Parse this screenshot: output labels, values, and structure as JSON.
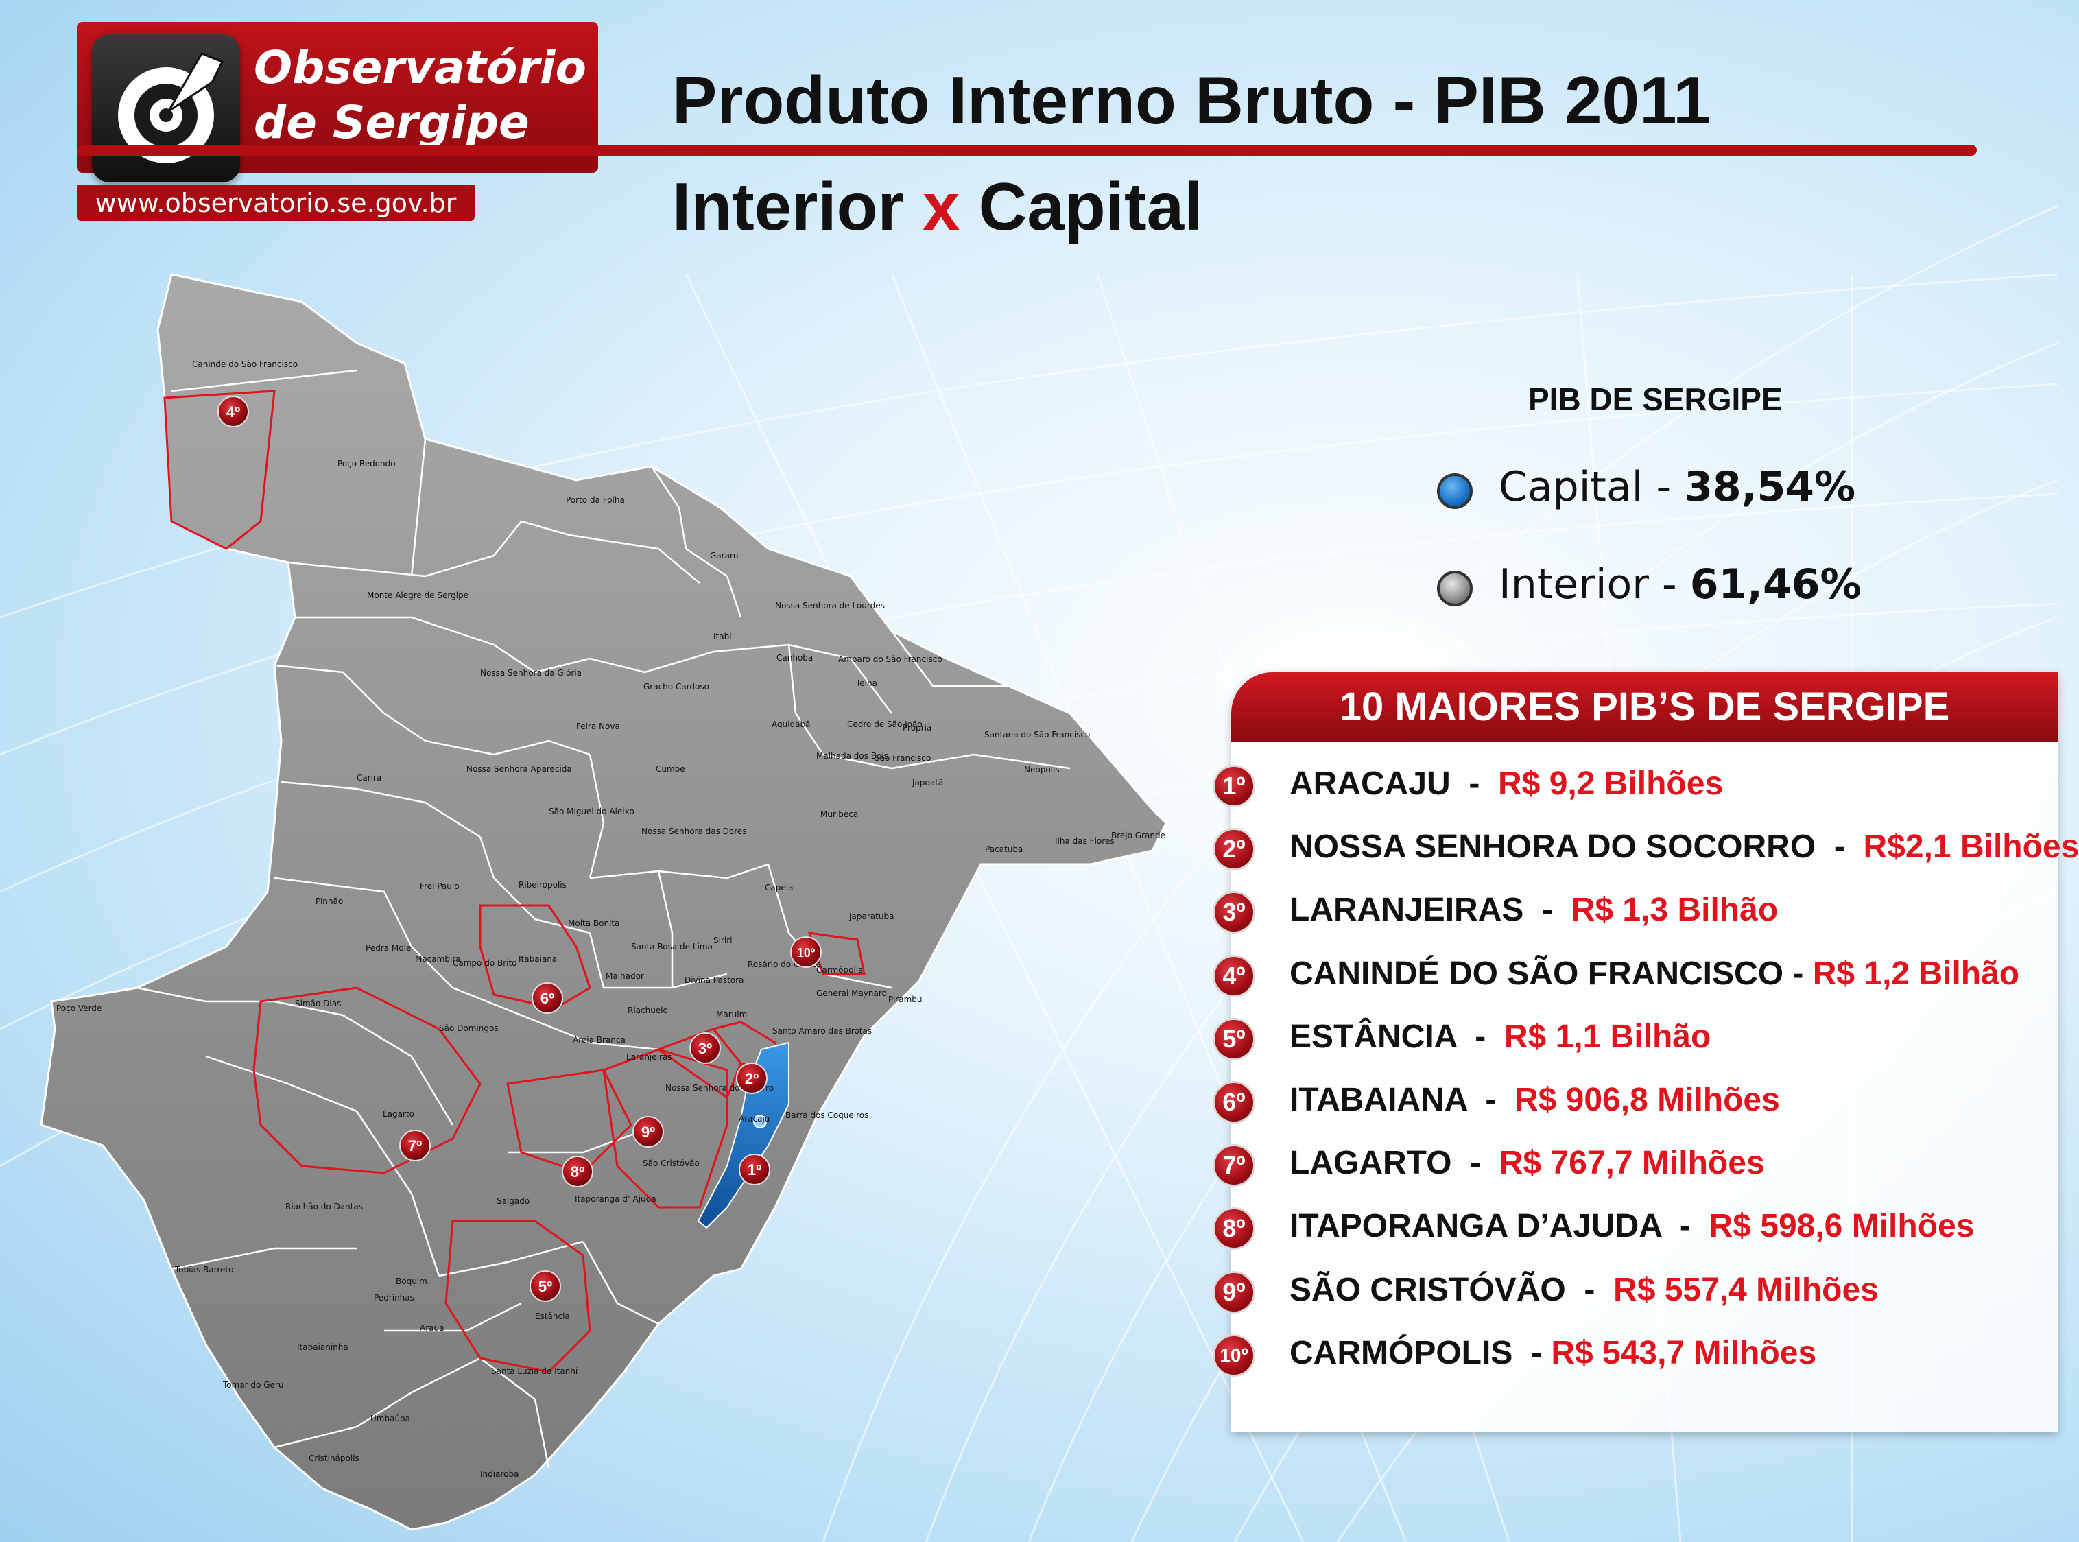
{
  "header": {
    "logo_line1": "Observatório",
    "logo_line2": "de Sergipe",
    "url": "www.observatorio.se.gov.br",
    "title_line1": "Produto Interno Bruto - PIB 2011",
    "title_line2_a": "Interior",
    "title_line2_x": "x",
    "title_line2_b": "Capital"
  },
  "pib_share": {
    "heading": "PIB DE SERGIPE",
    "items": [
      {
        "label": "Capital",
        "sep": " - ",
        "value": "38,54%",
        "color": "#1a73c9"
      },
      {
        "label": "Interior",
        "sep": " - ",
        "value": "61,46%",
        "color": "#8c8c8c"
      }
    ]
  },
  "ranking": {
    "title": "10 MAIORES PIB’S DE SERGIPE",
    "rows": [
      {
        "rank": "1º",
        "city": "ARACAJU",
        "sep": "  -  ",
        "value": "R$ 9,2 Bilhões"
      },
      {
        "rank": "2º",
        "city": "NOSSA SENHORA DO SOCORRO",
        "sep": "  -  ",
        "value": "R$2,1 Bilhões"
      },
      {
        "rank": "3º",
        "city": "LARANJEIRAS",
        "sep": "  -  ",
        "value": "R$ 1,3 Bilhão"
      },
      {
        "rank": "4º",
        "city": "CANINDÉ DO SÃO FRANCISCO",
        "sep": " - ",
        "value": "R$ 1,2 Bilhão"
      },
      {
        "rank": "5º",
        "city": "ESTÂNCIA",
        "sep": "  -  ",
        "value": "R$ 1,1 Bilhão"
      },
      {
        "rank": "6º",
        "city": "ITABAIANA",
        "sep": "  -  ",
        "value": "R$ 906,8 Milhões"
      },
      {
        "rank": "7º",
        "city": "LAGARTO",
        "sep": "  -  ",
        "value": "R$ 767,7 Milhões"
      },
      {
        "rank": "8º",
        "city": "ITAPORANGA D’AJUDA",
        "sep": "  -  ",
        "value": "R$ 598,6 Milhões"
      },
      {
        "rank": "9º",
        "city": "SÃO CRISTÓVÃO",
        "sep": "  -  ",
        "value": "R$ 557,4 Milhões"
      },
      {
        "rank": "10º",
        "city": "CARMÓPOLIS",
        "sep": "  - ",
        "value": "R$ 543,7 Milhões"
      }
    ]
  },
  "map": {
    "municipalities": [
      "Canindé do São Francisco",
      "Poço Redondo",
      "Porto da Folha",
      "Monte Alegre de Sergipe",
      "Gararu",
      "Nossa Senhora de Lourdes",
      "Itabi",
      "Canhoba",
      "Amparo do São Francisco",
      "Telha",
      "Nossa Senhora da Glória",
      "Gracho Cardoso",
      "Feira Nova",
      "Cumbe",
      "Aquidabã",
      "Cedro de São João",
      "Propriá",
      "Malhada dos Bois",
      "São Francisco",
      "Santana do São Francisco",
      "Neópolis",
      "Japoatã",
      "Muribeca",
      "Carira",
      "Nossa Senhora Aparecida",
      "São Miguel do Aleixo",
      "Nossa Senhora das Dores",
      "Pacatuba",
      "Ilha das Flores",
      "Brejo Grande",
      "Ribeirópolis",
      "Frei Paulo",
      "Capela",
      "Japaratuba",
      "Pinhão",
      "Moita Bonita",
      "Siriri",
      "Pedra Mole",
      "Macambira",
      "Itabaiana",
      "Santa Rosa de Lima",
      "Rosário do Catete",
      "Carmópolis",
      "General Maynard",
      "Malhador",
      "Divina Pastora",
      "Campo do Brito",
      "São Domingos",
      "Riachuelo",
      "Maruim",
      "Pirambu",
      "Simão Dias",
      "Poço Verde",
      "Areia Branca",
      "Laranjeiras",
      "Santo Amaro das Brotas",
      "Nossa Senhora do Socorro",
      "Aracaju",
      "Barra dos Coqueiros",
      "Lagarto",
      "São Cristóvão",
      "Itaporanga d’ Ajuda",
      "Salgado",
      "Riachão do Dantas",
      "Tobias Barreto",
      "Boquim",
      "Pedrinhas",
      "Estância",
      "Arauá",
      "Itabaianinha",
      "Santa Luzia do Itanhi",
      "Tomar do Geru",
      "Umbaúba",
      "Cristinápolis",
      "Indiaroba"
    ],
    "badges": [
      "1º",
      "2º",
      "3º",
      "4º",
      "5º",
      "6º",
      "7º",
      "8º",
      "9º",
      "10º"
    ],
    "capital_color": "#1a73c9",
    "interior_color": "#8c8c8c"
  }
}
